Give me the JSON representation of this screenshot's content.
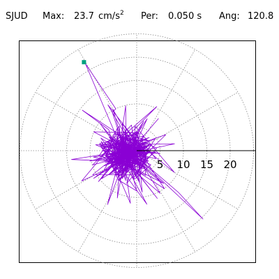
{
  "header": {
    "station": "SJUD",
    "max_label": "Max:",
    "max_value": "23.7",
    "max_unit": "cm/s",
    "max_unit_exp": "2",
    "per_label": "Per:",
    "per_value": "0.050 s",
    "ang_label": "Ang:",
    "ang_value": "120.8"
  },
  "polar": {
    "tick_labels": [
      "5",
      "10",
      "15",
      "20"
    ],
    "ring_values": [
      5,
      10,
      15,
      20
    ],
    "outer_ring_value": 25,
    "radial_lines_deg": [
      0,
      30,
      60,
      90,
      120,
      150,
      180,
      210,
      240,
      270,
      300,
      330
    ]
  },
  "colors": {
    "trace": "#8a00d4",
    "marker": "#00a080",
    "grid": "#888888",
    "frame": "#000000"
  },
  "marker": {
    "icon": "square-marker",
    "angle_deg": 120.8,
    "magnitude": 23.7
  }
}
